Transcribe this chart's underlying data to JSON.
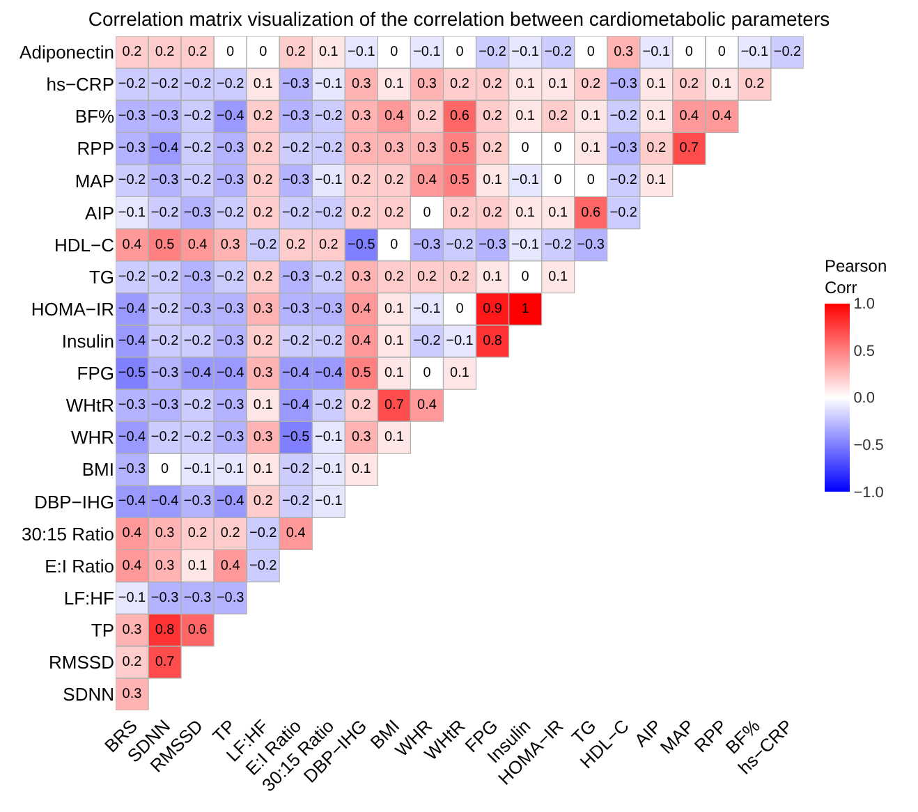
{
  "chart_data": {
    "type": "heatmap",
    "title": "Correlation matrix visualization of the correlation between cardiometabolic parameters",
    "clabel": "Pearson\nCorr",
    "categories": [
      "BRS",
      "SDNN",
      "RMSSD",
      "TP",
      "LF:HF",
      "E:I Ratio",
      "30:15 Ratio",
      "DBP−IHG",
      "BMI",
      "WHR",
      "WHtR",
      "FPG",
      "Insulin",
      "HOMA−IR",
      "TG",
      "HDL−C",
      "AIP",
      "MAP",
      "RPP",
      "BF%",
      "hs−CRP"
    ],
    "y_categories": [
      "Adiponectin",
      "hs−CRP",
      "BF%",
      "RPP",
      "MAP",
      "AIP",
      "HDL−C",
      "TG",
      "HOMA−IR",
      "Insulin",
      "FPG",
      "WHtR",
      "WHR",
      "BMI",
      "DBP−IHG",
      "30:15 Ratio",
      "E:I Ratio",
      "LF:HF",
      "TP",
      "RMSSD",
      "SDNN"
    ],
    "cells": [
      [
        0.2,
        0.2,
        0.2,
        0,
        0,
        0.2,
        0.1,
        -0.1,
        0,
        -0.1,
        0,
        -0.2,
        -0.1,
        -0.2,
        0,
        0.3,
        -0.1,
        0,
        0,
        -0.1,
        -0.2
      ],
      [
        -0.2,
        -0.2,
        -0.2,
        -0.2,
        0.1,
        -0.3,
        -0.1,
        0.3,
        0.1,
        0.3,
        0.2,
        0.2,
        0.1,
        0.1,
        0.2,
        -0.3,
        0.1,
        0.2,
        0.1,
        0.2,
        null
      ],
      [
        -0.3,
        -0.3,
        -0.2,
        -0.4,
        0.2,
        -0.3,
        -0.2,
        0.3,
        0.4,
        0.2,
        0.6,
        0.2,
        0.1,
        0.2,
        0.1,
        -0.2,
        0.1,
        0.4,
        0.4,
        null,
        null
      ],
      [
        -0.3,
        -0.4,
        -0.2,
        -0.3,
        0.2,
        -0.2,
        -0.2,
        0.3,
        0.3,
        0.3,
        0.5,
        0.2,
        0,
        0,
        0.1,
        -0.3,
        0.2,
        0.7,
        null,
        null,
        null
      ],
      [
        -0.2,
        -0.3,
        -0.2,
        -0.3,
        0.2,
        -0.3,
        -0.1,
        0.2,
        0.2,
        0.4,
        0.5,
        0.1,
        -0.1,
        0,
        0,
        -0.2,
        0.1,
        null,
        null,
        null,
        null
      ],
      [
        -0.1,
        -0.2,
        -0.3,
        -0.2,
        0.2,
        -0.2,
        -0.2,
        0.2,
        0.2,
        0,
        0.2,
        0.2,
        0.1,
        0.1,
        0.6,
        -0.2,
        null,
        null,
        null,
        null,
        null
      ],
      [
        0.4,
        0.5,
        0.4,
        0.3,
        -0.2,
        0.2,
        0.2,
        -0.5,
        0,
        -0.3,
        -0.2,
        -0.3,
        -0.1,
        -0.2,
        -0.3,
        null,
        null,
        null,
        null,
        null,
        null
      ],
      [
        -0.2,
        -0.2,
        -0.3,
        -0.2,
        0.2,
        -0.3,
        -0.2,
        0.3,
        0.2,
        0.2,
        0.2,
        0.1,
        0,
        0.1,
        null,
        null,
        null,
        null,
        null,
        null,
        null
      ],
      [
        -0.4,
        -0.2,
        -0.3,
        -0.3,
        0.3,
        -0.3,
        -0.3,
        0.4,
        0.1,
        -0.1,
        0,
        0.9,
        1,
        null,
        null,
        null,
        null,
        null,
        null,
        null,
        null
      ],
      [
        -0.4,
        -0.2,
        -0.2,
        -0.3,
        0.2,
        -0.2,
        -0.2,
        0.4,
        0.1,
        -0.2,
        -0.1,
        0.8,
        null,
        null,
        null,
        null,
        null,
        null,
        null,
        null,
        null
      ],
      [
        -0.5,
        -0.3,
        -0.4,
        -0.4,
        0.3,
        -0.4,
        -0.4,
        0.5,
        0.1,
        0,
        0.1,
        null,
        null,
        null,
        null,
        null,
        null,
        null,
        null,
        null,
        null
      ],
      [
        -0.3,
        -0.3,
        -0.2,
        -0.3,
        0.1,
        -0.4,
        -0.2,
        0.2,
        0.7,
        0.4,
        null,
        null,
        null,
        null,
        null,
        null,
        null,
        null,
        null,
        null,
        null
      ],
      [
        -0.4,
        -0.2,
        -0.2,
        -0.3,
        0.3,
        -0.5,
        -0.1,
        0.3,
        0.1,
        null,
        null,
        null,
        null,
        null,
        null,
        null,
        null,
        null,
        null,
        null,
        null
      ],
      [
        -0.3,
        0,
        -0.1,
        -0.1,
        0.1,
        -0.2,
        -0.1,
        0.1,
        null,
        null,
        null,
        null,
        null,
        null,
        null,
        null,
        null,
        null,
        null,
        null,
        null
      ],
      [
        -0.4,
        -0.4,
        -0.3,
        -0.4,
        0.2,
        -0.2,
        -0.1,
        null,
        null,
        null,
        null,
        null,
        null,
        null,
        null,
        null,
        null,
        null,
        null,
        null,
        null
      ],
      [
        0.4,
        0.3,
        0.2,
        0.2,
        -0.2,
        0.4,
        null,
        null,
        null,
        null,
        null,
        null,
        null,
        null,
        null,
        null,
        null,
        null,
        null,
        null,
        null
      ],
      [
        0.4,
        0.3,
        0.1,
        0.4,
        -0.2,
        null,
        null,
        null,
        null,
        null,
        null,
        null,
        null,
        null,
        null,
        null,
        null,
        null,
        null,
        null,
        null
      ],
      [
        -0.1,
        -0.3,
        -0.3,
        -0.3,
        null,
        null,
        null,
        null,
        null,
        null,
        null,
        null,
        null,
        null,
        null,
        null,
        null,
        null,
        null,
        null,
        null
      ],
      [
        0.3,
        0.8,
        0.6,
        null,
        null,
        null,
        null,
        null,
        null,
        null,
        null,
        null,
        null,
        null,
        null,
        null,
        null,
        null,
        null,
        null,
        null
      ],
      [
        0.2,
        0.7,
        null,
        null,
        null,
        null,
        null,
        null,
        null,
        null,
        null,
        null,
        null,
        null,
        null,
        null,
        null,
        null,
        null,
        null,
        null
      ],
      [
        0.3,
        null,
        null,
        null,
        null,
        null,
        null,
        null,
        null,
        null,
        null,
        null,
        null,
        null,
        null,
        null,
        null,
        null,
        null,
        null,
        null
      ]
    ],
    "data_labels": true,
    "clim": [
      -1,
      1
    ],
    "cticks": [
      {
        "value": -1,
        "label": "−1.0"
      },
      {
        "value": -0.5,
        "label": "−0.5"
      },
      {
        "value": 0,
        "label": "0.0"
      },
      {
        "value": 0.5,
        "label": "0.5"
      },
      {
        "value": 1,
        "label": "1.0"
      }
    ]
  }
}
